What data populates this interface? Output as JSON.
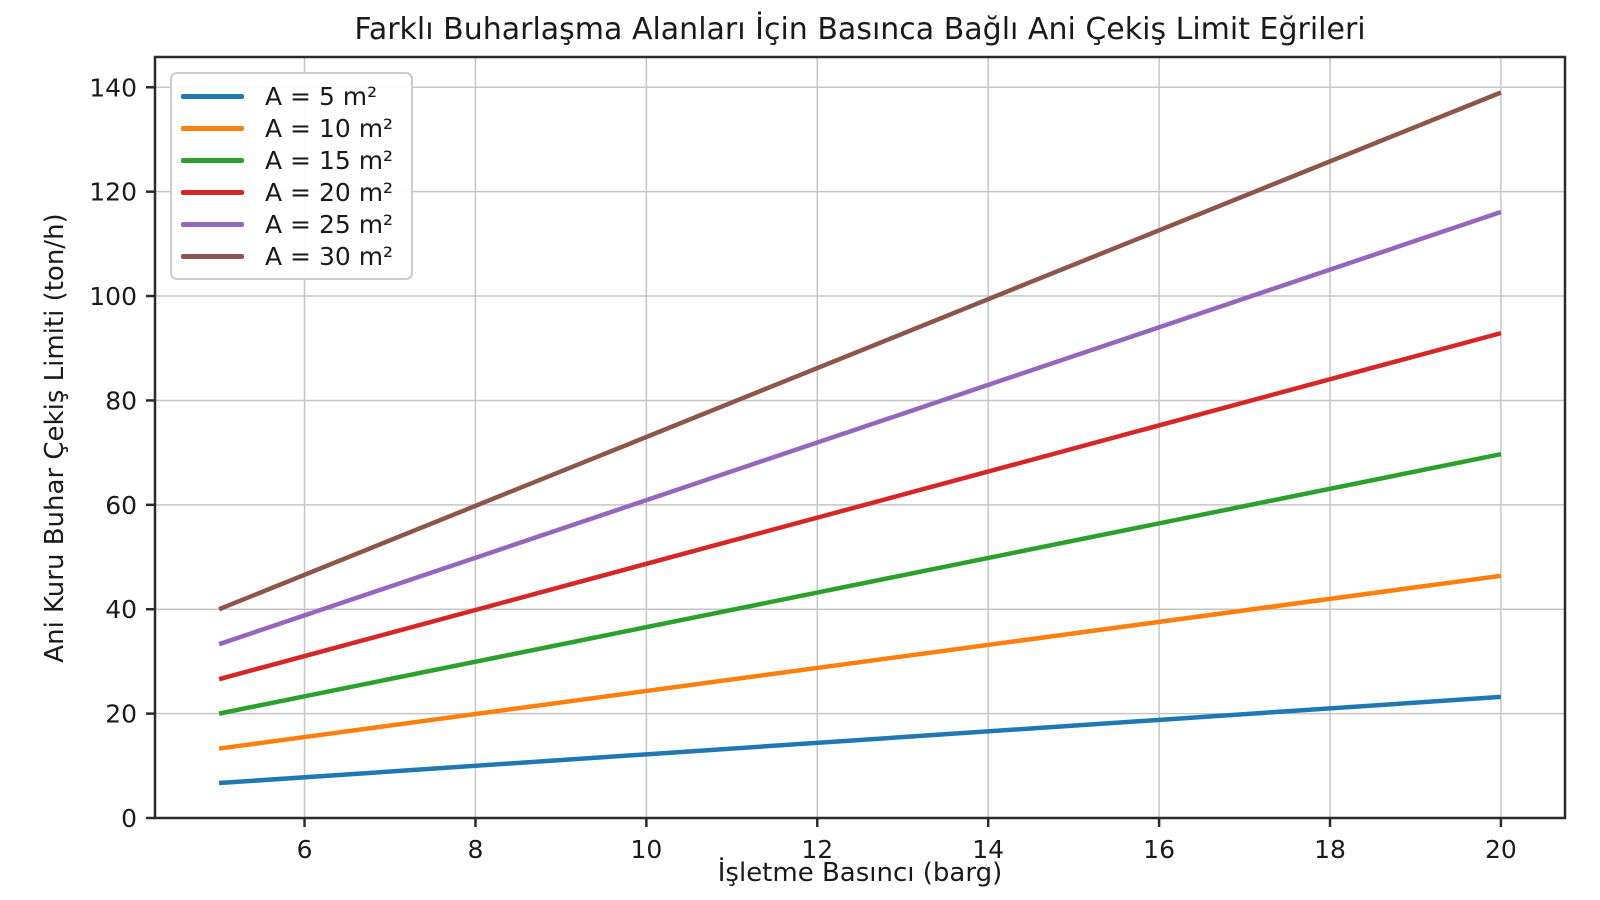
{
  "chart_data": {
    "type": "line",
    "title": "Farklı Buharlaşma Alanları İçin Basınca Bağlı Ani Çekiş Limit Eğrileri",
    "xlabel": "İşletme Basıncı (barg)",
    "ylabel": "Ani Kuru Buhar Çekiş Limiti (ton/h)",
    "xlim": [
      4.25,
      20.75
    ],
    "ylim": [
      0,
      145.8
    ],
    "xticks": [
      6,
      8,
      10,
      12,
      14,
      16,
      18,
      20
    ],
    "yticks": [
      0,
      20,
      40,
      60,
      80,
      100,
      120,
      140
    ],
    "grid": true,
    "legend_position": "upper-left",
    "series": [
      {
        "name": "A = 5 m²",
        "color": "#1f77b4",
        "x": [
          5,
          20
        ],
        "values": [
          6.7,
          23.2
        ]
      },
      {
        "name": "A = 10 m²",
        "color": "#ff7f0e",
        "x": [
          5,
          20
        ],
        "values": [
          13.3,
          46.4
        ]
      },
      {
        "name": "A = 15 m²",
        "color": "#2ca02c",
        "x": [
          5,
          20
        ],
        "values": [
          20.0,
          69.7
        ]
      },
      {
        "name": "A = 20 m²",
        "color": "#d62728",
        "x": [
          5,
          20
        ],
        "values": [
          26.6,
          92.9
        ]
      },
      {
        "name": "A = 25 m²",
        "color": "#9467bd",
        "x": [
          5,
          20
        ],
        "values": [
          33.3,
          116.1
        ]
      },
      {
        "name": "A = 30 m²",
        "color": "#8c564b",
        "x": [
          5,
          20
        ],
        "values": [
          40.0,
          139.0
        ]
      }
    ],
    "colors": {
      "grid": "#c6c6c6",
      "spine": "#2b2b2b",
      "tick": "#2b2b2b",
      "text": "#1a1a1a",
      "background": "#ffffff"
    }
  }
}
